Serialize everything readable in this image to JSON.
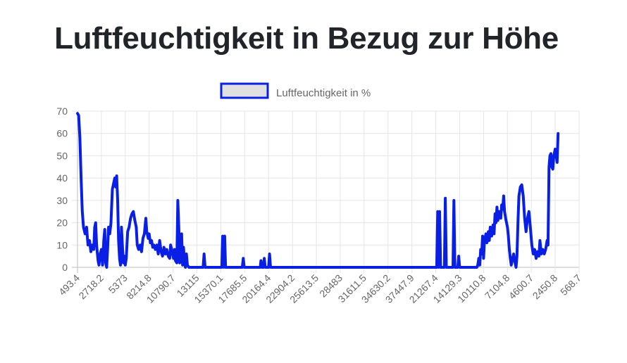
{
  "page": {
    "title": "Luftfeuchtigkeit in Bezug zur Höhe"
  },
  "chart_data": {
    "type": "line",
    "title": "Luftfeuchtigkeit in Bezug zur Höhe",
    "legend_position": "top",
    "grid": true,
    "line_color": "#0a1fe6",
    "legend_fill_color": "#e0e0e0",
    "xlabel": "",
    "ylabel": "",
    "ylim": [
      0,
      70
    ],
    "y_ticks": [
      0,
      10,
      20,
      30,
      40,
      50,
      60,
      70
    ],
    "x_tick_labels": [
      "493.4",
      "2718.2",
      "5373",
      "8214.8",
      "10790.7",
      "13115",
      "15370.1",
      "17685.5",
      "20164.4",
      "22904.2",
      "25613.5",
      "28483",
      "31611.5",
      "34630.2",
      "37447.9",
      "21267.4",
      "14129.3",
      "10110.8",
      "7104.8",
      "4600.7",
      "2450.8",
      "568.7"
    ],
    "series": [
      {
        "name": "Luftfeuchtigkeit in %",
        "points": [
          [
            0,
            69
          ],
          [
            0.05,
            68
          ],
          [
            0.1,
            58
          ],
          [
            0.15,
            40
          ],
          [
            0.2,
            25
          ],
          [
            0.25,
            18
          ],
          [
            0.32,
            15
          ],
          [
            0.38,
            18
          ],
          [
            0.44,
            10
          ],
          [
            0.5,
            12
          ],
          [
            0.56,
            7
          ],
          [
            0.62,
            10
          ],
          [
            0.68,
            8
          ],
          [
            0.72,
            18
          ],
          [
            0.76,
            20
          ],
          [
            0.8,
            10
          ],
          [
            0.86,
            3
          ],
          [
            0.9,
            1
          ],
          [
            0.95,
            6
          ],
          [
            1.0,
            8
          ],
          [
            1.05,
            1
          ],
          [
            1.1,
            12
          ],
          [
            1.14,
            17
          ],
          [
            1.18,
            2
          ],
          [
            1.22,
            0
          ],
          [
            1.26,
            8
          ],
          [
            1.3,
            18
          ],
          [
            1.35,
            15
          ],
          [
            1.4,
            20
          ],
          [
            1.46,
            35
          ],
          [
            1.52,
            38
          ],
          [
            1.56,
            40
          ],
          [
            1.6,
            36
          ],
          [
            1.64,
            41
          ],
          [
            1.68,
            30
          ],
          [
            1.72,
            12
          ],
          [
            1.76,
            4
          ],
          [
            1.8,
            1
          ],
          [
            1.84,
            18
          ],
          [
            1.88,
            10
          ],
          [
            1.92,
            2
          ],
          [
            1.96,
            5
          ],
          [
            2.0,
            1
          ],
          [
            2.04,
            4
          ],
          [
            2.1,
            16
          ],
          [
            2.16,
            18
          ],
          [
            2.22,
            22
          ],
          [
            2.28,
            24
          ],
          [
            2.34,
            25
          ],
          [
            2.4,
            21
          ],
          [
            2.46,
            18
          ],
          [
            2.5,
            10
          ],
          [
            2.56,
            8
          ],
          [
            2.62,
            10
          ],
          [
            2.68,
            7
          ],
          [
            2.74,
            13
          ],
          [
            2.8,
            15
          ],
          [
            2.86,
            22
          ],
          [
            2.9,
            16
          ],
          [
            2.96,
            13
          ],
          [
            3.0,
            15
          ],
          [
            3.05,
            11
          ],
          [
            3.1,
            12
          ],
          [
            3.15,
            9
          ],
          [
            3.2,
            10
          ],
          [
            3.26,
            8
          ],
          [
            3.32,
            10
          ],
          [
            3.38,
            6
          ],
          [
            3.44,
            12
          ],
          [
            3.5,
            7
          ],
          [
            3.56,
            5
          ],
          [
            3.62,
            9
          ],
          [
            3.68,
            6
          ],
          [
            3.74,
            8
          ],
          [
            3.8,
            5
          ],
          [
            3.86,
            4
          ],
          [
            3.9,
            10
          ],
          [
            3.96,
            7
          ],
          [
            4.02,
            4
          ],
          [
            4.06,
            8
          ],
          [
            4.1,
            3
          ],
          [
            4.16,
            2
          ],
          [
            4.2,
            30
          ],
          [
            4.24,
            18
          ],
          [
            4.28,
            2
          ],
          [
            4.32,
            6
          ],
          [
            4.36,
            15
          ],
          [
            4.4,
            1
          ],
          [
            4.44,
            9
          ],
          [
            4.48,
            2
          ],
          [
            4.52,
            0
          ],
          [
            4.56,
            6
          ],
          [
            4.6,
            1
          ],
          [
            4.66,
            0
          ],
          [
            4.8,
            0
          ],
          [
            5.2,
            0
          ],
          [
            5.26,
            0
          ],
          [
            5.3,
            6
          ],
          [
            5.34,
            0
          ],
          [
            5.4,
            0
          ],
          [
            6.0,
            0
          ],
          [
            6.04,
            0
          ],
          [
            6.08,
            14
          ],
          [
            6.12,
            0
          ],
          [
            6.16,
            14
          ],
          [
            6.2,
            0
          ],
          [
            6.24,
            0
          ],
          [
            6.9,
            0
          ],
          [
            6.94,
            4
          ],
          [
            6.98,
            0
          ],
          [
            7.0,
            0
          ],
          [
            7.65,
            0
          ],
          [
            7.68,
            3
          ],
          [
            7.72,
            0
          ],
          [
            7.78,
            0
          ],
          [
            7.82,
            4
          ],
          [
            7.86,
            0
          ],
          [
            8.0,
            0
          ],
          [
            8.04,
            6
          ],
          [
            8.08,
            0
          ],
          [
            8.2,
            0
          ],
          [
            15.0,
            0
          ],
          [
            15.04,
            0
          ],
          [
            15.08,
            25
          ],
          [
            15.12,
            0
          ],
          [
            15.16,
            25
          ],
          [
            15.2,
            0
          ],
          [
            15.36,
            0
          ],
          [
            15.4,
            31
          ],
          [
            15.44,
            0
          ],
          [
            15.72,
            0
          ],
          [
            15.76,
            30
          ],
          [
            15.8,
            0
          ],
          [
            15.92,
            0
          ],
          [
            15.96,
            5
          ],
          [
            16.0,
            0
          ],
          [
            16.72,
            0
          ],
          [
            16.76,
            1
          ],
          [
            16.8,
            4
          ],
          [
            16.84,
            1
          ],
          [
            16.88,
            8
          ],
          [
            16.92,
            6
          ],
          [
            16.96,
            14
          ],
          [
            17.0,
            4
          ],
          [
            17.04,
            12
          ],
          [
            17.1,
            15
          ],
          [
            17.14,
            11
          ],
          [
            17.2,
            16
          ],
          [
            17.24,
            12
          ],
          [
            17.28,
            18
          ],
          [
            17.34,
            14
          ],
          [
            17.4,
            19
          ],
          [
            17.44,
            15
          ],
          [
            17.48,
            24
          ],
          [
            17.52,
            20
          ],
          [
            17.56,
            27
          ],
          [
            17.6,
            21
          ],
          [
            17.66,
            25
          ],
          [
            17.72,
            22
          ],
          [
            17.76,
            28
          ],
          [
            17.8,
            26
          ],
          [
            17.84,
            32
          ],
          [
            17.88,
            25
          ],
          [
            17.94,
            21
          ],
          [
            18.0,
            18
          ],
          [
            18.04,
            14
          ],
          [
            18.08,
            8
          ],
          [
            18.12,
            4
          ],
          [
            18.16,
            1
          ],
          [
            18.22,
            4
          ],
          [
            18.26,
            6
          ],
          [
            18.32,
            2
          ],
          [
            18.36,
            0
          ],
          [
            18.4,
            5
          ],
          [
            18.44,
            20
          ],
          [
            18.48,
            32
          ],
          [
            18.54,
            36
          ],
          [
            18.6,
            37
          ],
          [
            18.66,
            32
          ],
          [
            18.72,
            22
          ],
          [
            18.78,
            16
          ],
          [
            18.84,
            22
          ],
          [
            18.9,
            25
          ],
          [
            18.96,
            18
          ],
          [
            19.02,
            10
          ],
          [
            19.08,
            6
          ],
          [
            19.14,
            8
          ],
          [
            19.2,
            4
          ],
          [
            19.26,
            7
          ],
          [
            19.32,
            5
          ],
          [
            19.36,
            12
          ],
          [
            19.42,
            6
          ],
          [
            19.48,
            8
          ],
          [
            19.54,
            6
          ],
          [
            19.6,
            8
          ],
          [
            19.66,
            12
          ],
          [
            19.7,
            10
          ],
          [
            19.74,
            45
          ],
          [
            19.78,
            50
          ],
          [
            19.82,
            51
          ],
          [
            19.86,
            45
          ],
          [
            19.9,
            44
          ],
          [
            19.94,
            50
          ],
          [
            20.0,
            53
          ],
          [
            20.04,
            50
          ],
          [
            20.08,
            47
          ],
          [
            20.12,
            60
          ]
        ]
      }
    ]
  }
}
